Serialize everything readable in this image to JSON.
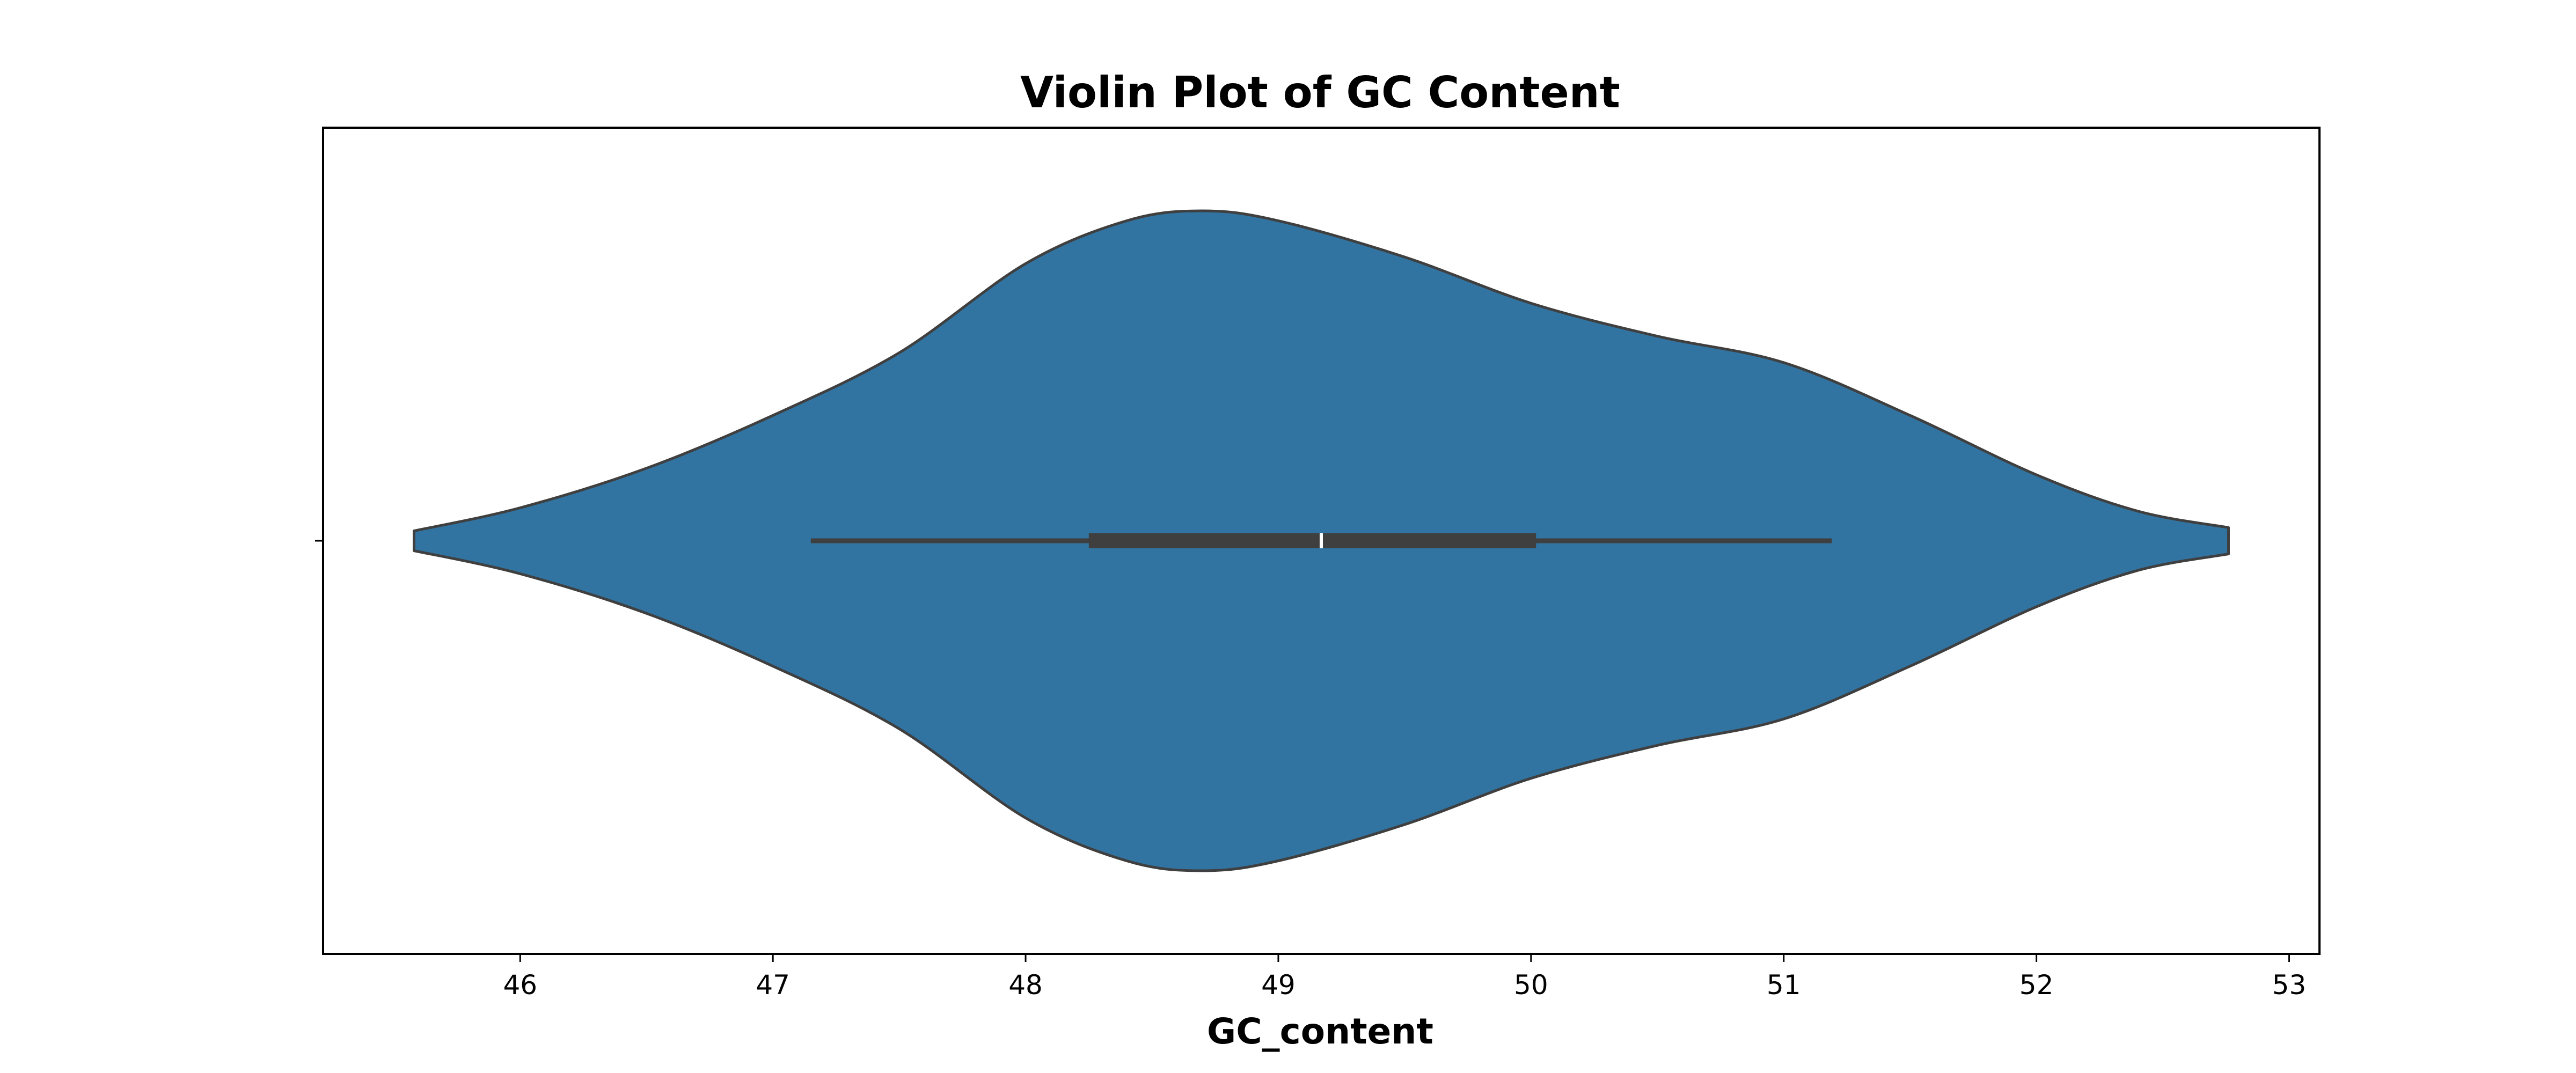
{
  "chart_data": {
    "type": "violin",
    "title": "Violin Plot of GC Content",
    "xlabel": "GC_content",
    "ylabel": "",
    "xlim": [
      45.22,
      53.12
    ],
    "xticks": [
      46,
      47,
      48,
      49,
      50,
      51,
      52,
      53
    ],
    "x_tick_labels": [
      "46",
      "47",
      "48",
      "49",
      "50",
      "51",
      "52",
      "53"
    ],
    "grid": false,
    "orientation": "horizontal",
    "fill_color": "#3274a1",
    "edge_color": "#3f3f3f",
    "box_color": "#3f3f3f",
    "median_color": "#ffffff",
    "density_profile": {
      "x": [
        45.58,
        46.0,
        46.5,
        47.0,
        47.5,
        48.0,
        48.4,
        48.7,
        49.0,
        49.5,
        50.0,
        50.5,
        51.0,
        51.5,
        52.0,
        52.4,
        52.76
      ],
      "relative_width": [
        0.03,
        0.1,
        0.22,
        0.38,
        0.57,
        0.84,
        0.97,
        1.0,
        0.97,
        0.86,
        0.72,
        0.62,
        0.54,
        0.38,
        0.2,
        0.09,
        0.04
      ]
    },
    "summary": {
      "min": 47.15,
      "q1": 48.25,
      "median": 49.17,
      "q3": 50.02,
      "max": 51.19
    }
  }
}
